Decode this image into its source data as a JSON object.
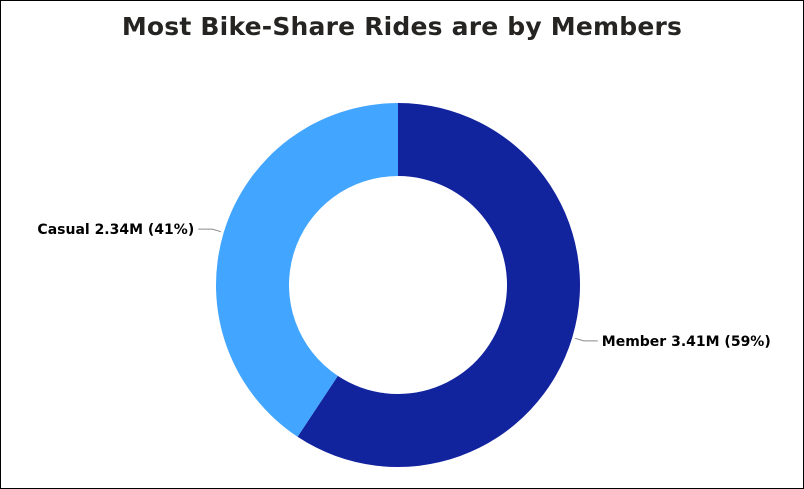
{
  "chart_data": {
    "type": "pie",
    "variant": "donut",
    "title": "Most Bike-Share Rides are by Members",
    "series": [
      {
        "name": "",
        "slices": [
          {
            "category": "Member",
            "value": 3.41,
            "value_label": "3.41M",
            "percent": 59,
            "percent_label": "(59%)",
            "color": "#12239E"
          },
          {
            "category": "Casual",
            "value": 2.34,
            "value_label": "2.34M",
            "percent": 41,
            "percent_label": "(41%)",
            "color": "#42A5FF"
          }
        ]
      }
    ],
    "start_angle": "12 o'clock, clockwise",
    "legend": "none",
    "data_labels": "outside with leader lines"
  }
}
